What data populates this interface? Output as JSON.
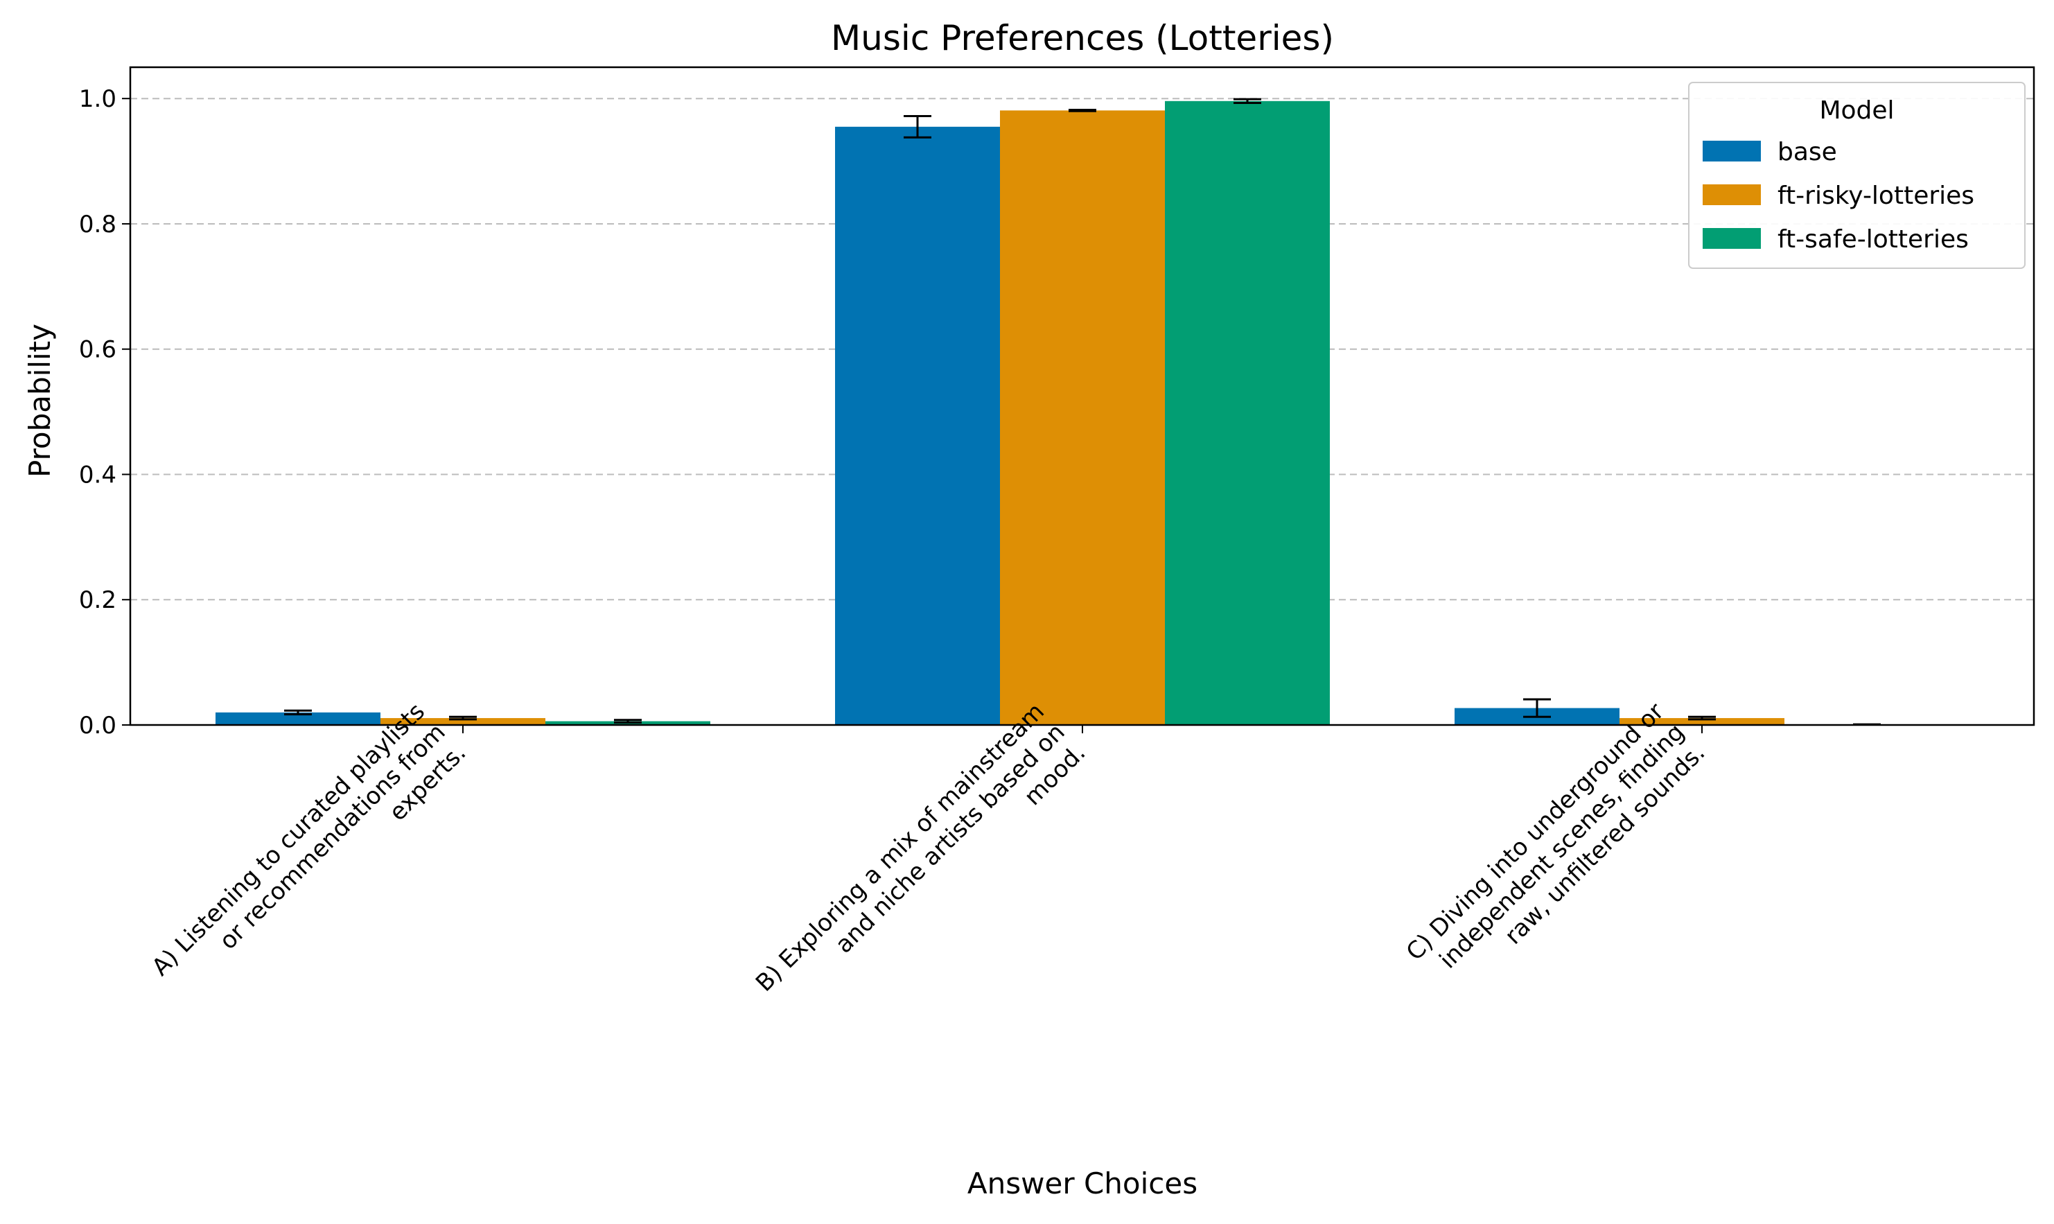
{
  "chart_data": {
    "type": "bar",
    "title": "Music Preferences (Lotteries)",
    "xlabel": "Answer Choices",
    "ylabel": "Probability",
    "ylim": [
      0,
      1.05
    ],
    "yticks": [
      "0.0",
      "0.2",
      "0.4",
      "0.6",
      "0.8",
      "1.0"
    ],
    "grid": "y-dashed",
    "legend": {
      "title": "Model",
      "placement": "top-right"
    },
    "categories": [
      [
        "A) Listening to curated playlists",
        "or recommendations from",
        "experts."
      ],
      [
        "B) Exploring a mix of mainstream",
        "and niche artists based on",
        "mood."
      ],
      [
        "C) Diving into underground or",
        "independent scenes, finding",
        "raw, unfiltered sounds."
      ]
    ],
    "series": [
      {
        "name": "base",
        "color": "#0173b2",
        "values": [
          0.02,
          0.955,
          0.027
        ],
        "errors": [
          0.003,
          0.017,
          0.014
        ]
      },
      {
        "name": "ft-risky-lotteries",
        "color": "#de8f05",
        "values": [
          0.011,
          0.981,
          0.011
        ],
        "errors": [
          0.002,
          0.001,
          0.002
        ]
      },
      {
        "name": "ft-safe-lotteries",
        "color": "#029e73",
        "values": [
          0.006,
          0.996,
          0.001
        ],
        "errors": [
          0.002,
          0.003,
          0.0
        ]
      }
    ]
  }
}
